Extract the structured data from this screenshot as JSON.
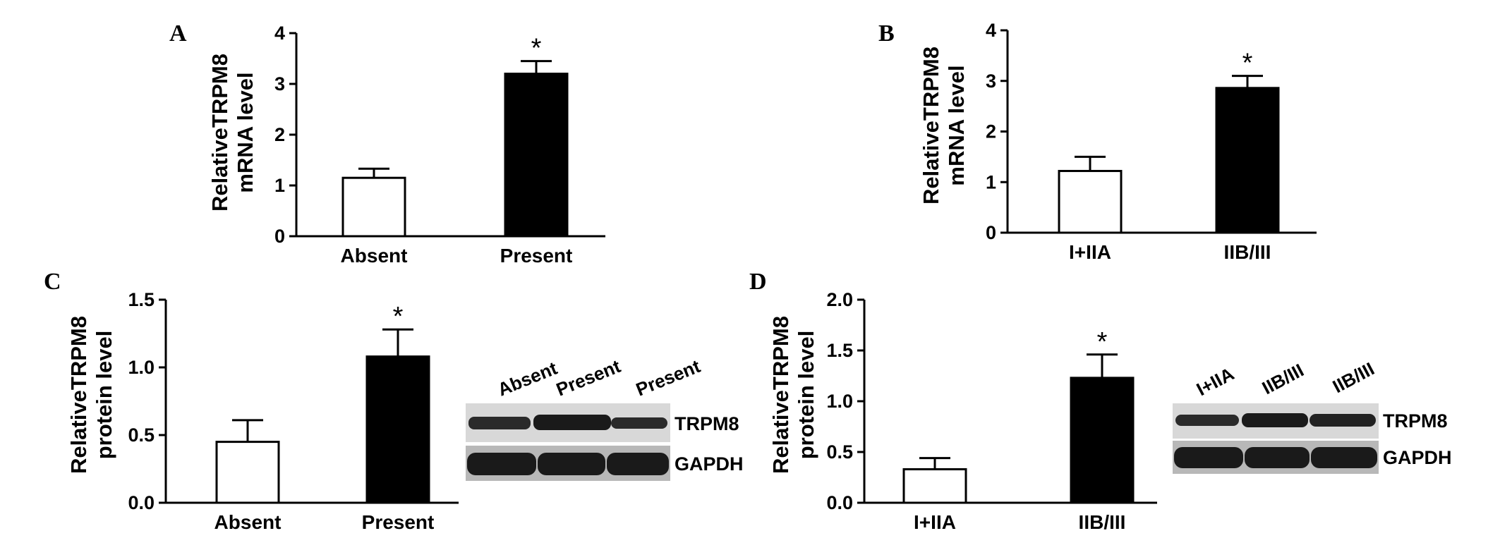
{
  "panels": {
    "A": {
      "letter": "A",
      "ylabel_lines": [
        "RelativeTRPM8",
        "mRNA level"
      ],
      "significance_marker": "*"
    },
    "B": {
      "letter": "B",
      "ylabel_lines": [
        "RelativeTRPM8",
        "mRNA level"
      ],
      "significance_marker": "*"
    },
    "C": {
      "letter": "C",
      "ylabel_lines": [
        "RelativeTRPM8",
        "protein level"
      ],
      "significance_marker": "*",
      "blot": {
        "lanes": [
          "Absent",
          "Present",
          "Present"
        ],
        "bands": [
          "TRPM8",
          "GAPDH"
        ]
      }
    },
    "D": {
      "letter": "D",
      "ylabel_lines": [
        "RelativeTRPM8",
        "protein level"
      ],
      "significance_marker": "*",
      "blot": {
        "lanes": [
          "I+IIA",
          "IIB/III",
          "IIB/III"
        ],
        "bands": [
          "TRPM8",
          "GAPDH"
        ]
      }
    }
  },
  "colors": {
    "bar_fill_group1": "#ffffff",
    "bar_fill_group2": "#000000",
    "axis": "#000000",
    "blot_background": "#d8d8d8",
    "band": "#1a1a1a"
  },
  "chart_data": [
    {
      "panel": "A",
      "type": "bar",
      "categories": [
        "Absent",
        "Present"
      ],
      "values": [
        1.15,
        3.2
      ],
      "error": [
        0.18,
        0.25
      ],
      "ylim": [
        0,
        4
      ],
      "yticks": [
        "0",
        "1",
        "2",
        "3",
        "4"
      ],
      "xlabel": "",
      "ylabel": "RelativeTRPM8 mRNA level",
      "significant": [
        false,
        true
      ]
    },
    {
      "panel": "B",
      "type": "bar",
      "categories": [
        "I+IIA",
        "IIB/III"
      ],
      "values": [
        1.22,
        2.86
      ],
      "error": [
        0.28,
        0.24
      ],
      "ylim": [
        0,
        4
      ],
      "yticks": [
        "0",
        "1",
        "2",
        "3",
        "4"
      ],
      "xlabel": "",
      "ylabel": "RelativeTRPM8 mRNA level",
      "significant": [
        false,
        true
      ]
    },
    {
      "panel": "C",
      "type": "bar",
      "categories": [
        "Absent",
        "Present"
      ],
      "values": [
        0.45,
        1.08
      ],
      "error": [
        0.16,
        0.2
      ],
      "ylim": [
        0,
        1.5
      ],
      "yticks": [
        "0.0",
        "0.5",
        "1.0",
        "1.5"
      ],
      "xlabel": "",
      "ylabel": "RelativeTRPM8 protein level",
      "significant": [
        false,
        true
      ]
    },
    {
      "panel": "D",
      "type": "bar",
      "categories": [
        "I+IIA",
        "IIB/III"
      ],
      "values": [
        0.33,
        1.23
      ],
      "error": [
        0.11,
        0.23
      ],
      "ylim": [
        0,
        2.0
      ],
      "yticks": [
        "0.0",
        "0.5",
        "1.0",
        "1.5",
        "2.0"
      ],
      "xlabel": "",
      "ylabel": "RelativeTRPM8 protein level",
      "significant": [
        false,
        true
      ]
    }
  ]
}
